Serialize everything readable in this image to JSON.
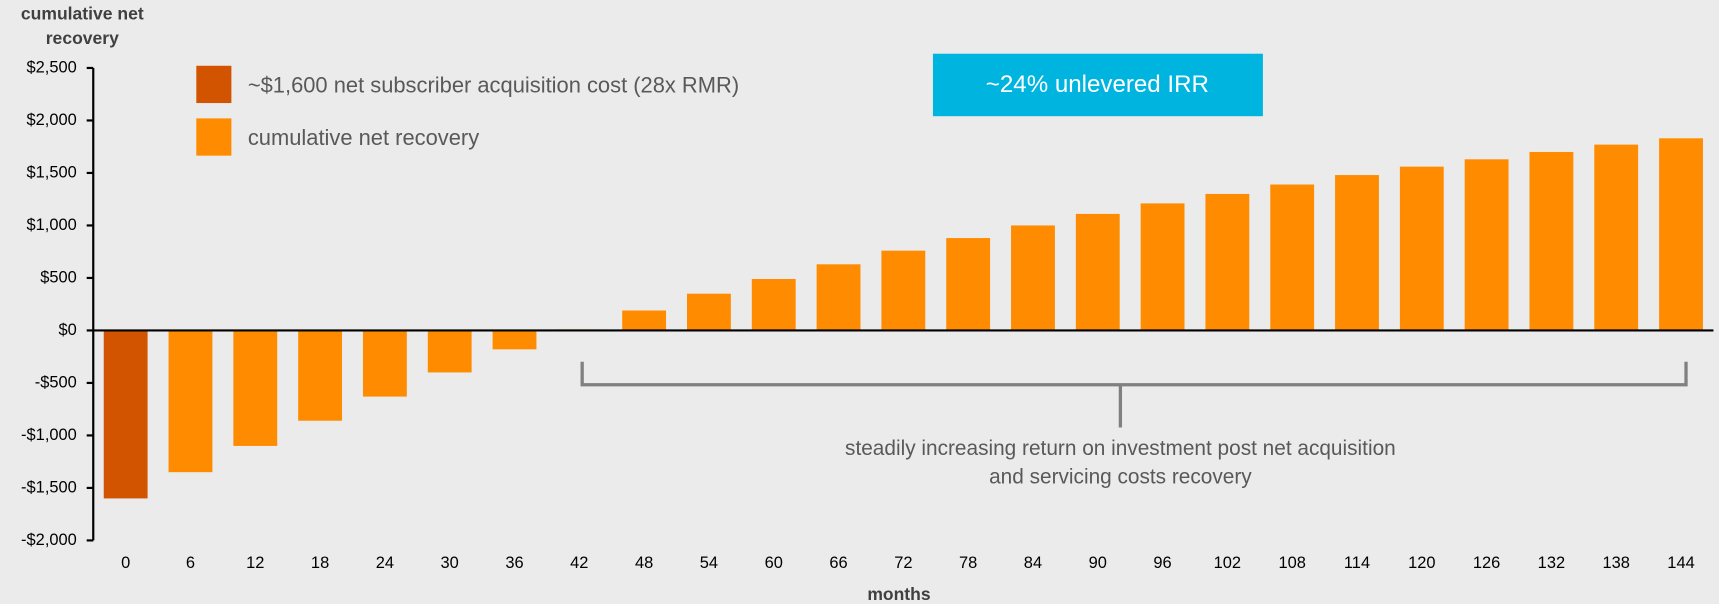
{
  "chart_data": {
    "type": "bar",
    "y_label": "cumulative net recovery",
    "x_label": "months",
    "categories": [
      "0",
      "6",
      "12",
      "18",
      "24",
      "30",
      "36",
      "42",
      "48",
      "54",
      "60",
      "66",
      "72",
      "78",
      "84",
      "90",
      "96",
      "102",
      "108",
      "114",
      "120",
      "126",
      "132",
      "138",
      "144"
    ],
    "series": [
      {
        "name": "~$1,600 net subscriber acquisition cost (28x RMR)",
        "color": "#d35400",
        "values": [
          -1600,
          null,
          null,
          null,
          null,
          null,
          null,
          null,
          null,
          null,
          null,
          null,
          null,
          null,
          null,
          null,
          null,
          null,
          null,
          null,
          null,
          null,
          null,
          null,
          null
        ]
      },
      {
        "name": "cumulative net recovery",
        "color": "#ff8c00",
        "values": [
          null,
          -1350,
          -1100,
          -860,
          -630,
          -400,
          -180,
          10,
          190,
          350,
          490,
          630,
          760,
          880,
          1000,
          1110,
          1210,
          1300,
          1390,
          1480,
          1560,
          1630,
          1700,
          1770,
          1830
        ]
      }
    ],
    "ylim": [
      -2000,
      2500
    ],
    "yticks": [
      {
        "value": -2000,
        "label": "-$2,000"
      },
      {
        "value": -1500,
        "label": "-$1,500"
      },
      {
        "value": -1000,
        "label": "-$1,000"
      },
      {
        "value": -500,
        "label": "-$500"
      },
      {
        "value": 0,
        "label": "$0"
      },
      {
        "value": 500,
        "label": "$500"
      },
      {
        "value": 1000,
        "label": "$1,000"
      },
      {
        "value": 1500,
        "label": "$1,500"
      },
      {
        "value": 2000,
        "label": "$2,000"
      },
      {
        "value": 2500,
        "label": "$2,500"
      }
    ],
    "annotations": [
      "~24% unlevered IRR",
      "steadily increasing return on investment post net acquisition",
      "and servicing costs recovery"
    ]
  }
}
